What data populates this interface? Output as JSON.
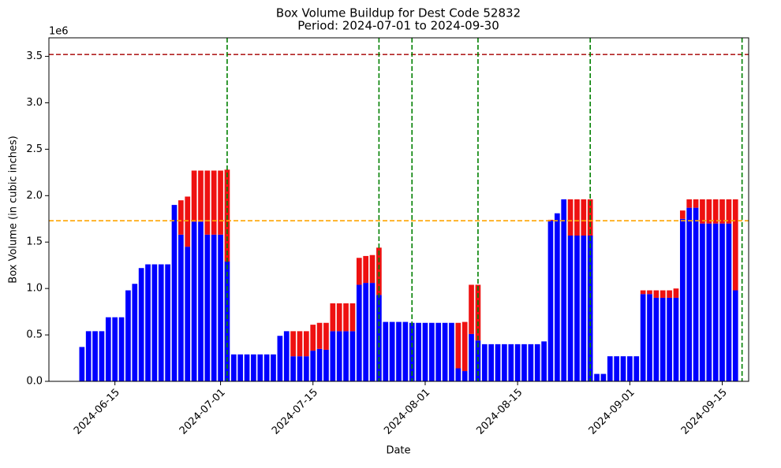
{
  "chart_data": {
    "type": "stacked_bar",
    "title": "Box Volume Buildup for Dest Code 52832",
    "subtitle": "Period: 2024-07-01 to 2024-09-30",
    "x_label": "Date",
    "y_label": "Box Volume (in cubic inches)",
    "y_offset_label": "1e6",
    "x": [
      "2024-06-10",
      "2024-06-11",
      "2024-06-12",
      "2024-06-13",
      "2024-06-14",
      "2024-06-15",
      "2024-06-16",
      "2024-06-17",
      "2024-06-18",
      "2024-06-19",
      "2024-06-20",
      "2024-06-21",
      "2024-06-22",
      "2024-06-23",
      "2024-06-24",
      "2024-06-25",
      "2024-06-26",
      "2024-06-27",
      "2024-06-28",
      "2024-06-29",
      "2024-06-30",
      "2024-07-01",
      "2024-07-02",
      "2024-07-03",
      "2024-07-04",
      "2024-07-05",
      "2024-07-06",
      "2024-07-07",
      "2024-07-08",
      "2024-07-09",
      "2024-07-10",
      "2024-07-11",
      "2024-07-12",
      "2024-07-13",
      "2024-07-14",
      "2024-07-15",
      "2024-07-16",
      "2024-07-17",
      "2024-07-18",
      "2024-07-19",
      "2024-07-20",
      "2024-07-21",
      "2024-07-22",
      "2024-07-23",
      "2024-07-24",
      "2024-07-25",
      "2024-07-26",
      "2024-07-27",
      "2024-07-28",
      "2024-07-29",
      "2024-07-30",
      "2024-07-31",
      "2024-08-01",
      "2024-08-02",
      "2024-08-03",
      "2024-08-04",
      "2024-08-05",
      "2024-08-06",
      "2024-08-07",
      "2024-08-08",
      "2024-08-09",
      "2024-08-10",
      "2024-08-11",
      "2024-08-12",
      "2024-08-13",
      "2024-08-14",
      "2024-08-15",
      "2024-08-16",
      "2024-08-17",
      "2024-08-18",
      "2024-08-19",
      "2024-08-20",
      "2024-08-21",
      "2024-08-22",
      "2024-08-23",
      "2024-08-24",
      "2024-08-25",
      "2024-08-26",
      "2024-08-27",
      "2024-08-28",
      "2024-08-29",
      "2024-08-30",
      "2024-08-31",
      "2024-09-01",
      "2024-09-02",
      "2024-09-03",
      "2024-09-04",
      "2024-09-05",
      "2024-09-06",
      "2024-09-07",
      "2024-09-08",
      "2024-09-09",
      "2024-09-10",
      "2024-09-11",
      "2024-09-12",
      "2024-09-13",
      "2024-09-14",
      "2024-09-15",
      "2024-09-16",
      "2024-09-17"
    ],
    "series": [
      {
        "color": "#0000ff",
        "values": [
          370000,
          540000,
          540000,
          540000,
          690000,
          690000,
          690000,
          980000,
          1050000,
          1220000,
          1260000,
          1260000,
          1260000,
          1260000,
          1900000,
          1580000,
          1450000,
          1720000,
          1720000,
          1580000,
          1580000,
          1580000,
          1290000,
          290000,
          290000,
          290000,
          290000,
          290000,
          290000,
          290000,
          490000,
          540000,
          270000,
          270000,
          270000,
          330000,
          350000,
          340000,
          540000,
          540000,
          540000,
          540000,
          1040000,
          1060000,
          1060000,
          930000,
          640000,
          640000,
          640000,
          640000,
          630000,
          630000,
          630000,
          630000,
          630000,
          630000,
          630000,
          140000,
          110000,
          510000,
          440000,
          400000,
          400000,
          400000,
          400000,
          400000,
          400000,
          400000,
          400000,
          400000,
          430000,
          1730000,
          1810000,
          1960000,
          1570000,
          1570000,
          1570000,
          1570000,
          80000,
          80000,
          270000,
          270000,
          270000,
          270000,
          270000,
          940000,
          940000,
          900000,
          900000,
          900000,
          900000,
          1750000,
          1870000,
          1870000,
          1700000,
          1700000,
          1700000,
          1700000,
          1700000,
          980000
        ]
      },
      {
        "color": "#ee1111",
        "values": [
          0,
          0,
          0,
          0,
          0,
          0,
          0,
          0,
          0,
          0,
          0,
          0,
          0,
          0,
          0,
          370000,
          540000,
          550000,
          550000,
          690000,
          690000,
          690000,
          990000,
          0,
          0,
          0,
          0,
          0,
          0,
          0,
          0,
          0,
          270000,
          270000,
          270000,
          280000,
          280000,
          290000,
          300000,
          300000,
          300000,
          300000,
          290000,
          290000,
          300000,
          510000,
          0,
          0,
          0,
          0,
          0,
          0,
          0,
          0,
          0,
          0,
          0,
          490000,
          530000,
          530000,
          600000,
          0,
          0,
          0,
          0,
          0,
          0,
          0,
          0,
          0,
          0,
          10000,
          0,
          0,
          390000,
          390000,
          390000,
          390000,
          0,
          0,
          0,
          0,
          0,
          0,
          0,
          40000,
          40000,
          80000,
          80000,
          80000,
          100000,
          90000,
          90000,
          90000,
          260000,
          260000,
          260000,
          260000,
          260000,
          980000
        ]
      }
    ],
    "hlines": [
      {
        "y": 3520000,
        "color": "#b22222"
      },
      {
        "y": 1730000,
        "color": "#ffa500"
      }
    ],
    "vlines": [
      {
        "x": "2024-07-02",
        "color": "#008000"
      },
      {
        "x": "2024-07-25",
        "color": "#008000"
      },
      {
        "x": "2024-07-30",
        "color": "#008000"
      },
      {
        "x": "2024-08-09",
        "color": "#008000"
      },
      {
        "x": "2024-08-26",
        "color": "#008000"
      },
      {
        "x": "2024-09-18",
        "color": "#008000"
      }
    ],
    "xlim": [
      "2024-06-05",
      "2024-09-19"
    ],
    "xticks": [
      "2024-06-15",
      "2024-07-01",
      "2024-07-15",
      "2024-08-01",
      "2024-08-15",
      "2024-09-01",
      "2024-09-15"
    ],
    "ylim": [
      0,
      3700000
    ],
    "yticks": [
      {
        "value": 0,
        "label": "0.0"
      },
      {
        "value": 500000,
        "label": "0.5"
      },
      {
        "value": 1000000,
        "label": "1.0"
      },
      {
        "value": 1500000,
        "label": "1.5"
      },
      {
        "value": 2000000,
        "label": "2.0"
      },
      {
        "value": 2500000,
        "label": "2.5"
      },
      {
        "value": 3000000,
        "label": "3.0"
      },
      {
        "value": 3500000,
        "label": "3.5"
      }
    ]
  }
}
